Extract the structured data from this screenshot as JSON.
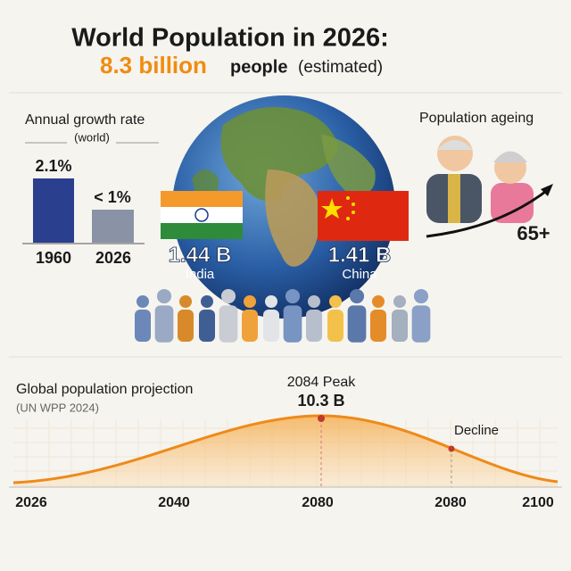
{
  "header": {
    "title": "World Population in 2026:",
    "highlight": "8.3 billion",
    "rest": "people",
    "note": "(estimated)"
  },
  "growth": {
    "title": "Annual growth rate",
    "subtitle": "(world)",
    "bars": [
      {
        "label": "2.1%",
        "year": "1960"
      },
      {
        "label": "< 1%",
        "year": "2026"
      }
    ]
  },
  "countries": [
    {
      "value": "1.44 B",
      "name": "India"
    },
    {
      "value": "1.41 B",
      "name": "China"
    }
  ],
  "ageing": {
    "title": "Population ageing",
    "label": "65+"
  },
  "projection": {
    "title": "Global population projection",
    "source": "(UN WPP 2024)",
    "peak_label": "2084 Peak",
    "peak_value": "10.3 B",
    "decline": "Decline",
    "axis": [
      "2026",
      "2040",
      "2080",
      "2080",
      "2100"
    ]
  }
}
